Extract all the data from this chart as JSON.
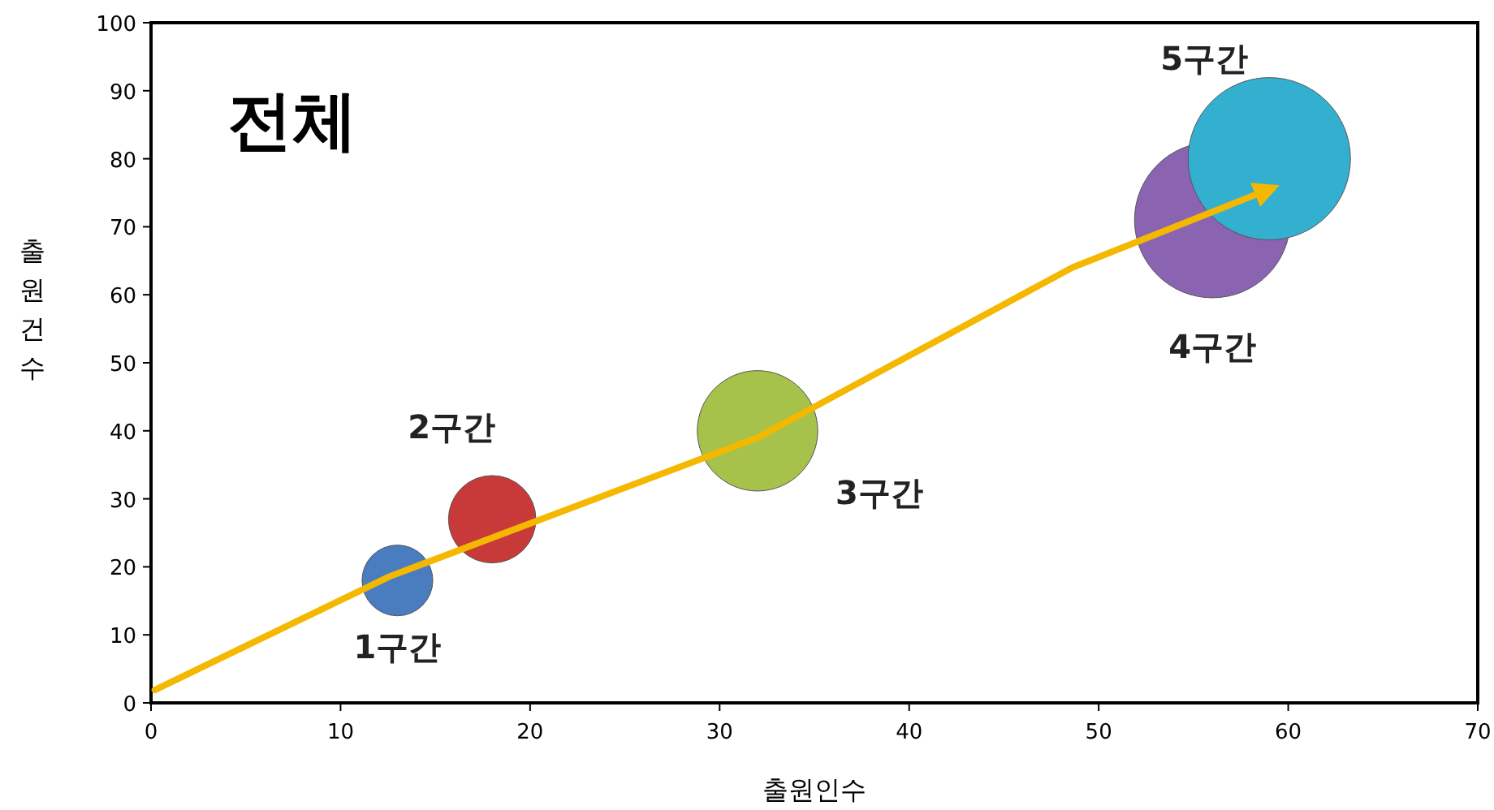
{
  "chart_data": {
    "type": "bubble",
    "title": "전체",
    "xlabel": "출원인수",
    "ylabel": "출원건수",
    "xlim": [
      0,
      70
    ],
    "xticks": [
      0,
      10,
      20,
      30,
      40,
      50,
      60,
      70
    ],
    "ylim": [
      0,
      100
    ],
    "yticks": [
      0,
      10,
      20,
      30,
      40,
      50,
      60,
      70,
      80,
      90,
      100
    ],
    "grid": false,
    "series": [
      {
        "name": "1구간",
        "color": "#4a7cc0",
        "x": [
          13
        ],
        "values": [
          18
        ],
        "sizes": [
          0.19
        ]
      },
      {
        "name": "2구간",
        "color": "#c83a3a",
        "x": [
          18
        ],
        "values": [
          27
        ],
        "sizes": [
          0.29
        ]
      },
      {
        "name": "3구간",
        "color": "#a6c24a",
        "x": [
          32
        ],
        "values": [
          40
        ],
        "sizes": [
          0.55
        ]
      },
      {
        "name": "4구간",
        "color": "#8a64b0",
        "x": [
          56
        ],
        "values": [
          71
        ],
        "sizes": [
          0.92
        ]
      },
      {
        "name": "5구간",
        "color": "#33b0d0",
        "x": [
          59
        ],
        "values": [
          80
        ],
        "sizes": [
          1
        ]
      },
      {
        "type": "line",
        "color": "#f5b800",
        "x": [
          0.2,
          12.6,
          32,
          48.6,
          58.9
        ],
        "values": [
          1.9,
          18.6,
          39,
          64,
          75.4
        ]
      }
    ]
  }
}
